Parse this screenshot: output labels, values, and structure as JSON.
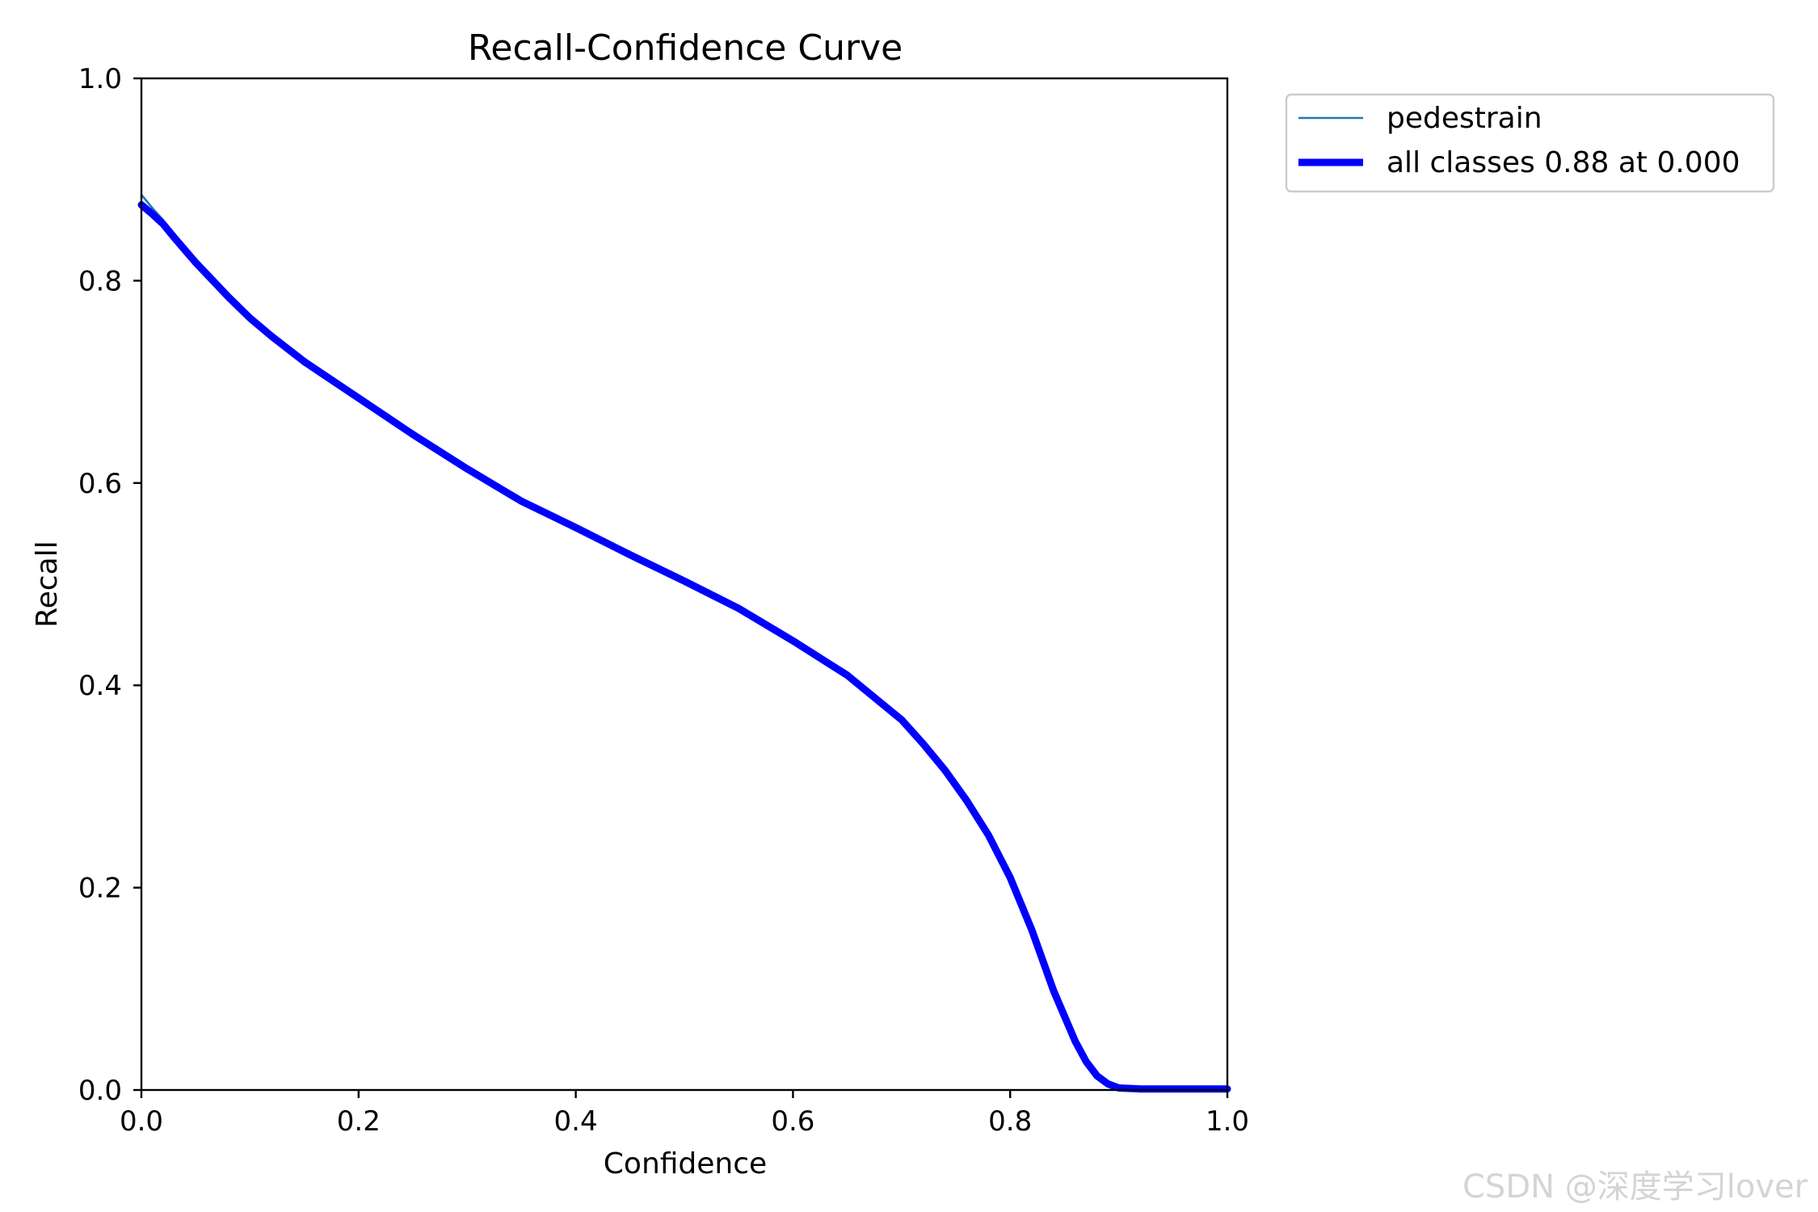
{
  "chart_data": {
    "type": "line",
    "title": "Recall-Confidence Curve",
    "xlabel": "Confidence",
    "ylabel": "Recall",
    "xlim": [
      0.0,
      1.0
    ],
    "ylim": [
      0.0,
      1.0
    ],
    "x_ticks": [
      "0.0",
      "0.2",
      "0.4",
      "0.6",
      "0.8",
      "1.0"
    ],
    "y_ticks": [
      "0.0",
      "0.2",
      "0.4",
      "0.6",
      "0.8",
      "1.0"
    ],
    "grid": false,
    "legend_position": "outside top-right",
    "series": [
      {
        "name": "pedestrain",
        "color": "#1f77b4",
        "points": [
          [
            0.0,
            0.885
          ],
          [
            0.01,
            0.872
          ],
          [
            0.02,
            0.86
          ],
          [
            0.03,
            0.845
          ],
          [
            0.05,
            0.818
          ],
          [
            0.08,
            0.784
          ],
          [
            0.1,
            0.763
          ],
          [
            0.12,
            0.745
          ],
          [
            0.15,
            0.72
          ],
          [
            0.2,
            0.684
          ],
          [
            0.25,
            0.648
          ],
          [
            0.3,
            0.614
          ],
          [
            0.35,
            0.582
          ],
          [
            0.4,
            0.556
          ],
          [
            0.45,
            0.529
          ],
          [
            0.5,
            0.503
          ],
          [
            0.55,
            0.476
          ],
          [
            0.6,
            0.444
          ],
          [
            0.65,
            0.41
          ],
          [
            0.7,
            0.366
          ],
          [
            0.72,
            0.342
          ],
          [
            0.74,
            0.316
          ],
          [
            0.76,
            0.286
          ],
          [
            0.78,
            0.252
          ],
          [
            0.8,
            0.21
          ],
          [
            0.82,
            0.158
          ],
          [
            0.84,
            0.098
          ],
          [
            0.86,
            0.045
          ],
          [
            0.87,
            0.025
          ],
          [
            0.88,
            0.011
          ],
          [
            0.89,
            0.004
          ],
          [
            0.9,
            0.001
          ],
          [
            0.92,
            0.0
          ],
          [
            0.95,
            0.0
          ],
          [
            1.0,
            0.0
          ]
        ]
      },
      {
        "name": "all classes 0.88 at 0.000",
        "color": "#0000ff",
        "points": [
          [
            0.0,
            0.875
          ],
          [
            0.01,
            0.866
          ],
          [
            0.02,
            0.856
          ],
          [
            0.03,
            0.843
          ],
          [
            0.05,
            0.818
          ],
          [
            0.08,
            0.784
          ],
          [
            0.1,
            0.763
          ],
          [
            0.12,
            0.745
          ],
          [
            0.15,
            0.72
          ],
          [
            0.2,
            0.684
          ],
          [
            0.25,
            0.648
          ],
          [
            0.3,
            0.614
          ],
          [
            0.35,
            0.582
          ],
          [
            0.4,
            0.556
          ],
          [
            0.45,
            0.529
          ],
          [
            0.5,
            0.503
          ],
          [
            0.55,
            0.476
          ],
          [
            0.6,
            0.444
          ],
          [
            0.65,
            0.41
          ],
          [
            0.7,
            0.366
          ],
          [
            0.72,
            0.342
          ],
          [
            0.74,
            0.316
          ],
          [
            0.76,
            0.286
          ],
          [
            0.78,
            0.252
          ],
          [
            0.8,
            0.21
          ],
          [
            0.82,
            0.158
          ],
          [
            0.84,
            0.098
          ],
          [
            0.86,
            0.048
          ],
          [
            0.87,
            0.028
          ],
          [
            0.88,
            0.014
          ],
          [
            0.89,
            0.006
          ],
          [
            0.9,
            0.002
          ],
          [
            0.92,
            0.001
          ],
          [
            0.95,
            0.001
          ],
          [
            1.0,
            0.001
          ]
        ]
      }
    ]
  },
  "watermark": "CSDN @深度学习lover"
}
